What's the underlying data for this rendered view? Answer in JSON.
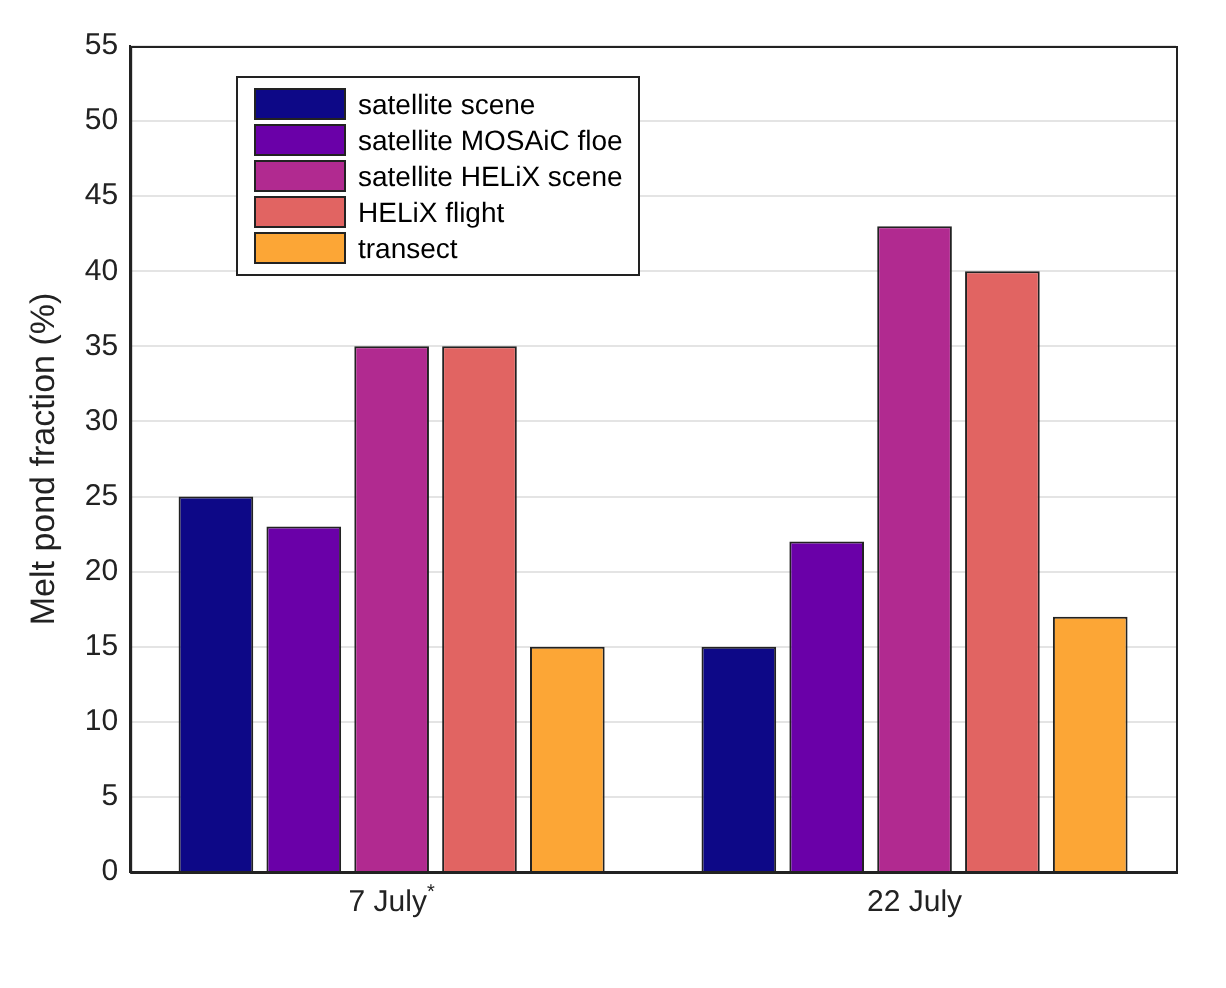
{
  "chart_data": {
    "type": "bar",
    "ylabel": "Melt pond fraction (%)",
    "categories": [
      "7 July$^{*}$",
      "22 July"
    ],
    "series": [
      {
        "name": "satellite scene",
        "color": "#0d0887",
        "values": [
          25,
          15
        ]
      },
      {
        "name": "satellite MOSAiC floe",
        "color": "#6a00a8",
        "values": [
          23,
          22
        ]
      },
      {
        "name": "satellite HELiX scene",
        "color": "#b12a90",
        "values": [
          35,
          43
        ]
      },
      {
        "name": "HELiX flight",
        "color": "#e16462",
        "values": [
          35,
          40
        ]
      },
      {
        "name": "transect",
        "color": "#fca636",
        "values": [
          15,
          17
        ]
      }
    ],
    "ylim": [
      0,
      55
    ],
    "yticks": [
      0,
      5,
      10,
      15,
      20,
      25,
      30,
      35,
      40,
      45,
      50,
      55
    ],
    "grid": "y",
    "legend": "top left"
  }
}
